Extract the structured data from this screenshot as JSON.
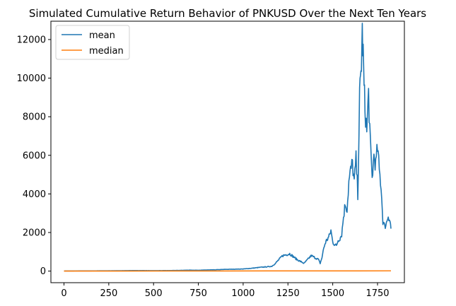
{
  "chart_data": {
    "type": "line",
    "title": "Simulated Cumulative Return Behavior of PNKUSD Over the Next Ten Years",
    "xlabel": "",
    "ylabel": "",
    "xlim": [
      -73,
      1900
    ],
    "ylim": [
      -600,
      12950
    ],
    "xticks": [
      0,
      250,
      500,
      750,
      1000,
      1250,
      1500,
      1750
    ],
    "yticks": [
      0,
      2000,
      4000,
      6000,
      8000,
      10000,
      12000
    ],
    "grid": false,
    "legend_position": "top-left",
    "series": [
      {
        "name": "mean",
        "color": "#1f77b4",
        "x": [
          0,
          100,
          200,
          300,
          400,
          500,
          600,
          650,
          700,
          750,
          800,
          850,
          900,
          950,
          1000,
          1050,
          1100,
          1130,
          1160,
          1180,
          1200,
          1220,
          1240,
          1260,
          1280,
          1300,
          1320,
          1340,
          1360,
          1380,
          1400,
          1420,
          1430,
          1440,
          1450,
          1460,
          1480,
          1490,
          1500,
          1520,
          1530,
          1540,
          1550,
          1560,
          1570,
          1580,
          1590,
          1600,
          1610,
          1620,
          1630,
          1640,
          1650,
          1655,
          1660,
          1665,
          1670,
          1675,
          1680,
          1690,
          1700,
          1710,
          1720,
          1730,
          1740,
          1750,
          1760,
          1770,
          1780,
          1790,
          1800,
          1810,
          1820,
          1825
        ],
        "y": [
          5,
          10,
          15,
          20,
          30,
          25,
          30,
          40,
          50,
          45,
          60,
          70,
          90,
          100,
          110,
          150,
          200,
          220,
          250,
          400,
          600,
          800,
          850,
          900,
          750,
          600,
          500,
          400,
          600,
          800,
          700,
          600,
          400,
          700,
          1200,
          1500,
          1800,
          2100,
          1500,
          1300,
          1600,
          1700,
          1900,
          2800,
          3500,
          3200,
          4600,
          5200,
          5600,
          4600,
          5800,
          4000,
          9000,
          9800,
          10800,
          12300,
          11200,
          9500,
          8500,
          7200,
          9200,
          6500,
          4800,
          6000,
          5500,
          6400,
          5200,
          4400,
          2600,
          2300,
          2500,
          2900,
          2600,
          2200
        ]
      },
      {
        "name": "median",
        "color": "#ff7f0e",
        "x": [
          0,
          300,
          600,
          900,
          1200,
          1500,
          1825
        ],
        "y": [
          1,
          3,
          5,
          8,
          10,
          12,
          13
        ]
      }
    ]
  }
}
